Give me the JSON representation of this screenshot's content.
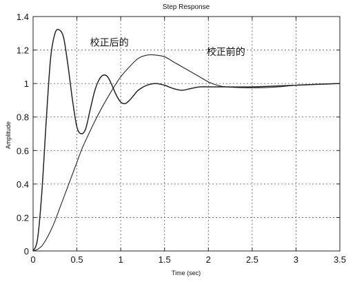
{
  "chart_data": {
    "type": "line",
    "title": "Step Response",
    "xlabel": "Time (sec)",
    "ylabel": "Amplitude",
    "xlim": [
      0,
      3.5
    ],
    "ylim": [
      0,
      1.4
    ],
    "xticks": [
      0,
      0.5,
      1,
      1.5,
      2,
      2.5,
      3,
      3.5
    ],
    "yticks": [
      0,
      0.2,
      0.4,
      0.6,
      0.8,
      1,
      1.2,
      1.4
    ],
    "xtick_labels": [
      "0",
      "0.5",
      "1",
      "1.5",
      "2",
      "2.5",
      "3",
      "3.5"
    ],
    "ytick_labels": [
      "0",
      "0.2",
      "0.4",
      "0.6",
      "0.8",
      "1",
      "1.2",
      "1.4"
    ],
    "grid": true,
    "grid_style": "dotted",
    "line_color": "#222222",
    "series": [
      {
        "name": "校正后的",
        "x": [
          0,
          0.05,
          0.1,
          0.15,
          0.2,
          0.25,
          0.3,
          0.35,
          0.4,
          0.45,
          0.5,
          0.55,
          0.6,
          0.65,
          0.7,
          0.75,
          0.8,
          0.85,
          0.9,
          0.95,
          1.0,
          1.05,
          1.1,
          1.15,
          1.2,
          1.3,
          1.4,
          1.5,
          1.6,
          1.7,
          1.8,
          1.9,
          2.0,
          2.2,
          2.5,
          3.0,
          3.5
        ],
        "values": [
          0,
          0.07,
          0.35,
          0.78,
          1.15,
          1.3,
          1.32,
          1.27,
          1.1,
          0.9,
          0.74,
          0.7,
          0.73,
          0.84,
          0.95,
          1.02,
          1.05,
          1.04,
          0.99,
          0.93,
          0.89,
          0.88,
          0.9,
          0.93,
          0.96,
          0.99,
          1.0,
          0.99,
          0.97,
          0.96,
          0.97,
          0.98,
          0.98,
          0.98,
          0.98,
          0.99,
          1.0
        ]
      },
      {
        "name": "校正前的",
        "x": [
          0,
          0.05,
          0.1,
          0.15,
          0.2,
          0.25,
          0.3,
          0.35,
          0.4,
          0.45,
          0.5,
          0.55,
          0.6,
          0.7,
          0.8,
          0.9,
          1.0,
          1.1,
          1.2,
          1.3,
          1.4,
          1.5,
          1.6,
          1.7,
          1.8,
          1.9,
          2.0,
          2.1,
          2.2,
          2.4,
          2.6,
          2.8,
          3.0,
          3.2,
          3.5
        ],
        "values": [
          0,
          0.01,
          0.03,
          0.07,
          0.12,
          0.18,
          0.25,
          0.32,
          0.39,
          0.46,
          0.53,
          0.6,
          0.66,
          0.77,
          0.87,
          0.96,
          1.04,
          1.1,
          1.15,
          1.17,
          1.17,
          1.16,
          1.13,
          1.1,
          1.07,
          1.04,
          1.01,
          0.99,
          0.98,
          0.975,
          0.975,
          0.98,
          0.99,
          0.995,
          1.0
        ]
      }
    ],
    "annotations": [
      {
        "text": "校正后的",
        "x": 0.65,
        "y": 1.225
      },
      {
        "text": "校正前的",
        "x": 1.98,
        "y": 1.17
      }
    ]
  }
}
